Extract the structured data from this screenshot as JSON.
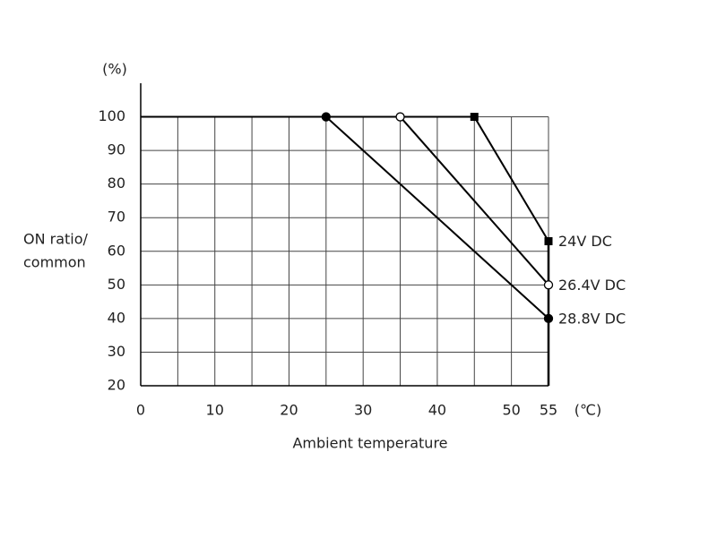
{
  "chart_data": {
    "type": "line",
    "y_unit": "(%)",
    "y_label": [
      "ON ratio/",
      "common"
    ],
    "x_unit": "(℃)",
    "x_label": "Ambient temperature",
    "xlim": [
      0,
      55
    ],
    "xticks": [
      0,
      10,
      20,
      30,
      40,
      50,
      55
    ],
    "x_minor_grid": [
      5,
      15,
      25,
      35,
      45
    ],
    "ylim": [
      20,
      110
    ],
    "yticks": [
      20,
      30,
      40,
      50,
      60,
      70,
      80,
      90,
      100
    ],
    "grid": true,
    "series": [
      {
        "name": "24V DC",
        "color": "#000000",
        "marker": "square",
        "x": [
          0,
          45,
          55
        ],
        "values": [
          100,
          100,
          63
        ]
      },
      {
        "name": "26.4V DC",
        "color": "#000000",
        "marker": "hollow-circle",
        "x": [
          0,
          35,
          55
        ],
        "values": [
          100,
          100,
          50
        ]
      },
      {
        "name": "28.8V DC",
        "color": "#000000",
        "marker": "circle",
        "x": [
          0,
          25,
          55
        ],
        "values": [
          100,
          100,
          40
        ]
      }
    ]
  }
}
